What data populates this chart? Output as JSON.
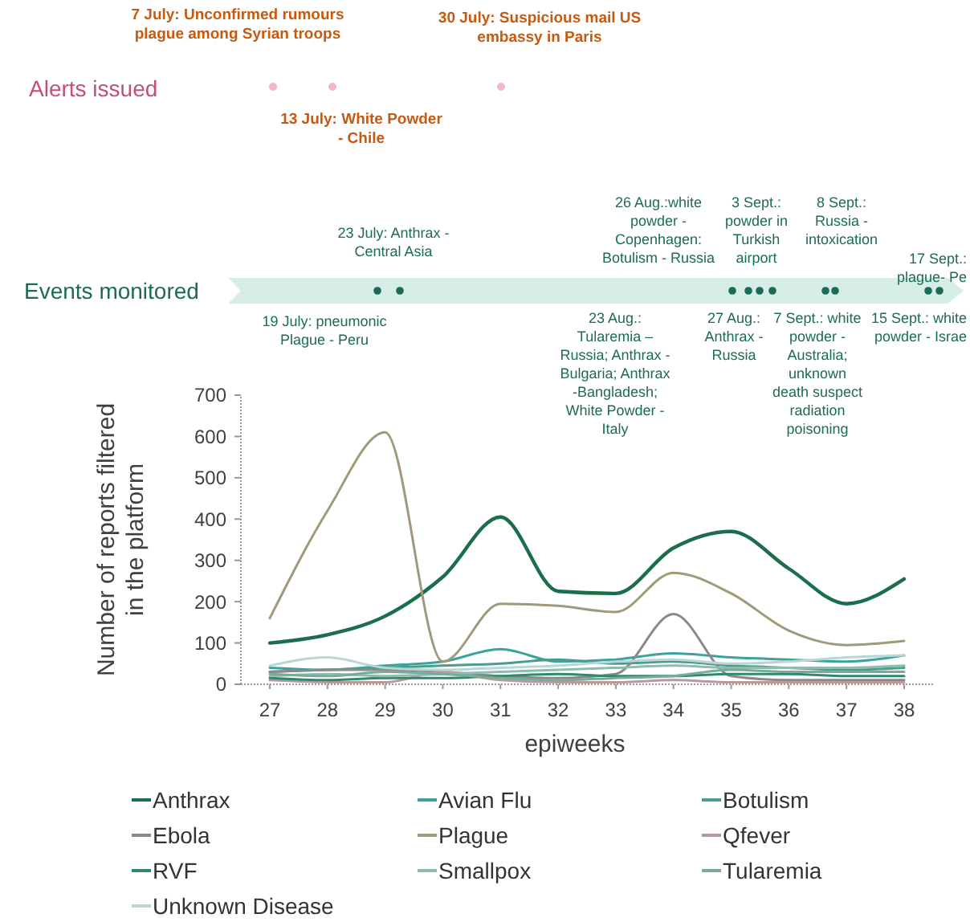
{
  "chart_data": {
    "type": "line",
    "xlabel": "epiweeks",
    "ylabel": "Number of reports filtered\nin the platform",
    "categories": [
      "27",
      "28",
      "29",
      "30",
      "31",
      "32",
      "33",
      "34",
      "35",
      "36",
      "37",
      "38"
    ],
    "ylim": [
      0,
      700
    ],
    "yticks": [
      0,
      100,
      200,
      300,
      400,
      500,
      600,
      700
    ],
    "grid": false,
    "legend": "bottom",
    "marker": "none",
    "line_style": "solid",
    "series": [
      {
        "name": "Anthrax",
        "color": "#1b6e4a",
        "values": [
          100,
          120,
          165,
          260,
          405,
          225,
          220,
          330,
          370,
          280,
          195,
          255
        ]
      },
      {
        "name": "Avian Flu",
        "color": "#3aa3a0",
        "values": [
          40,
          35,
          45,
          55,
          85,
          55,
          60,
          75,
          65,
          60,
          55,
          70
        ]
      },
      {
        "name": "Botulism",
        "color": "#4a9c8c",
        "values": [
          30,
          35,
          40,
          45,
          50,
          60,
          50,
          55,
          45,
          40,
          35,
          40
        ]
      },
      {
        "name": "Ebola",
        "color": "#8a8a8a",
        "values": [
          30,
          35,
          35,
          30,
          20,
          15,
          25,
          170,
          20,
          10,
          10,
          10
        ]
      },
      {
        "name": "Plague",
        "color": "#a09a7a",
        "values": [
          160,
          420,
          610,
          55,
          195,
          190,
          175,
          270,
          220,
          130,
          95,
          105
        ]
      },
      {
        "name": "Qfever",
        "color": "#b89a9a",
        "values": [
          10,
          5,
          5,
          30,
          10,
          5,
          5,
          10,
          5,
          5,
          5,
          5
        ]
      },
      {
        "name": "RVF",
        "color": "#2e8a6e",
        "values": [
          15,
          10,
          15,
          15,
          20,
          25,
          20,
          20,
          25,
          25,
          20,
          20
        ]
      },
      {
        "name": "Smallpox",
        "color": "#8fbcb0",
        "values": [
          20,
          25,
          20,
          25,
          30,
          35,
          40,
          45,
          40,
          40,
          40,
          45
        ]
      },
      {
        "name": "Tularemia",
        "color": "#7aaa9a",
        "values": [
          25,
          20,
          30,
          25,
          15,
          10,
          15,
          20,
          35,
          30,
          30,
          30
        ]
      },
      {
        "name": "Unknown Disease",
        "color": "#b9d6d6",
        "values": [
          45,
          65,
          40,
          35,
          40,
          45,
          55,
          60,
          50,
          55,
          65,
          70
        ]
      }
    ],
    "annotations": [
      "7 July: Unconfirmed rumours\nplague among Syrian troops",
      "30 July: Suspicious mail US\nembassy in Paris",
      "Alerts issued",
      "13 July: White Powder\n- Chile",
      "Events monitored",
      "23 July: Anthrax -\nCentral Asia",
      "19 July: pneumonic\nPlague - Peru",
      "26 Aug.:white\npowder -\nCopenhagen:\nBotulism - Russia",
      "3 Sept.:\npowder in\nTurkish\nairport",
      "8 Sept.:\nRussia -\nintoxication",
      "17 Sept.:\nplague- Pe",
      "23 Aug.:\nTularemia –\nRussia; Anthrax -\nBulgaria; Anthrax\n-Bangladesh;\nWhite Powder -\nItaly",
      "27 Aug.:\nAnthrax -\nRussia",
      "7 Sept.: white\npowder -\nAustralia;\nunknown\ndeath suspect\nradiation\npoisoning",
      "15 Sept.: white\npowder - Israe"
    ]
  }
}
